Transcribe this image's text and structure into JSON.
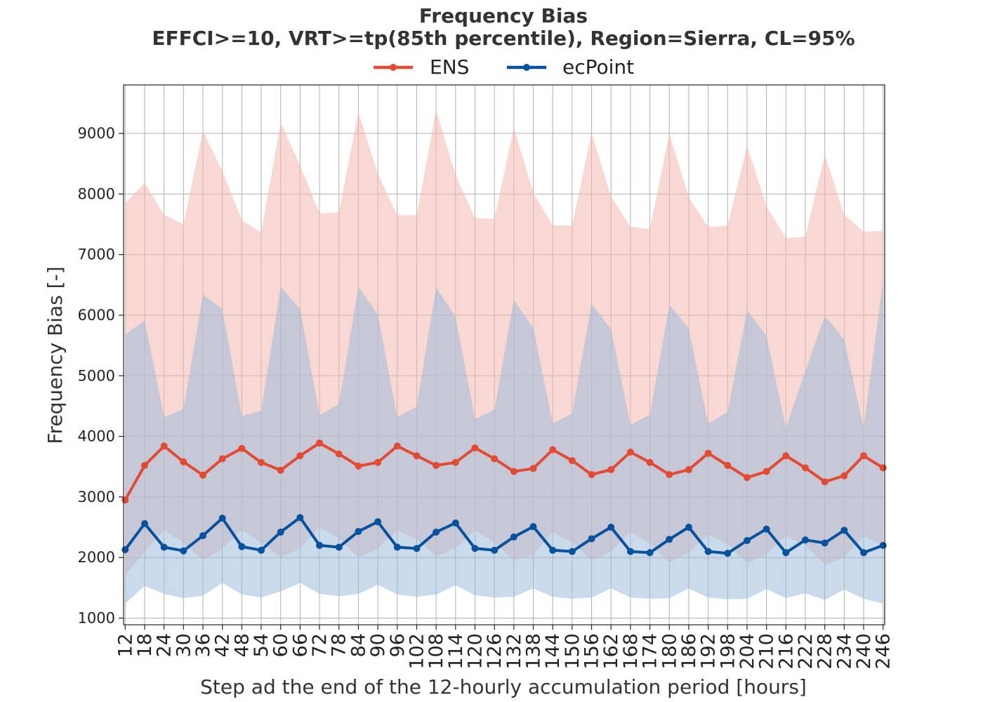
{
  "chart_data": {
    "type": "line",
    "title": "Frequency Bias",
    "subtitle": "EFFCI>=10, VRT>=tp(85th percentile), Region=Sierra, CL=95%",
    "xlabel": "Step ad the end of the 12-hourly accumulation period [hours]",
    "ylabel": "Frequency Bias [-]",
    "x": [
      12,
      18,
      24,
      30,
      36,
      42,
      48,
      54,
      60,
      66,
      72,
      78,
      84,
      90,
      96,
      102,
      108,
      114,
      120,
      126,
      132,
      138,
      144,
      150,
      156,
      162,
      168,
      174,
      180,
      186,
      192,
      198,
      204,
      210,
      216,
      222,
      228,
      234,
      240,
      246
    ],
    "xlim": [
      11.5,
      246.5
    ],
    "ylim": [
      890,
      9800
    ],
    "yticks": [
      1000,
      2000,
      3000,
      4000,
      5000,
      6000,
      7000,
      8000,
      9000
    ],
    "grid": true,
    "legend_position": "top-center",
    "series": [
      {
        "name": "ENS",
        "color": "#e34a33",
        "band_color": "#f4b6ae",
        "values": [
          2950,
          3520,
          3840,
          3580,
          3360,
          3630,
          3800,
          3570,
          3440,
          3680,
          3890,
          3710,
          3510,
          3570,
          3840,
          3680,
          3520,
          3570,
          3810,
          3630,
          3420,
          3470,
          3780,
          3600,
          3370,
          3450,
          3740,
          3570,
          3370,
          3450,
          3720,
          3520,
          3320,
          3420,
          3680,
          3480,
          3250,
          3350,
          3680,
          3480
        ],
        "upper": [
          7850,
          8180,
          7660,
          7500,
          9040,
          8380,
          7570,
          7360,
          9180,
          8470,
          7680,
          7700,
          9350,
          8330,
          7650,
          7650,
          9390,
          8310,
          7600,
          7590,
          9100,
          8020,
          7480,
          7480,
          9010,
          7960,
          7460,
          7420,
          8990,
          7950,
          7450,
          7480,
          8800,
          7800,
          7270,
          7300,
          8650,
          7660,
          7380,
          7390
        ],
        "lower": [
          1700,
          2100,
          2450,
          2250,
          1950,
          2150,
          2450,
          2250,
          2000,
          2150,
          2500,
          2320,
          2000,
          2150,
          2450,
          2300,
          2020,
          2150,
          2450,
          2250,
          1950,
          2050,
          2420,
          2250,
          1950,
          2100,
          2420,
          2230,
          1920,
          2080,
          2380,
          2220,
          1900,
          2050,
          2350,
          2200,
          1880,
          2000,
          2350,
          2200
        ]
      },
      {
        "name": "ecPoint",
        "color": "#08519c",
        "band_color": "#9dbbdd",
        "values": [
          2130,
          2560,
          2170,
          2110,
          2360,
          2650,
          2180,
          2120,
          2420,
          2660,
          2200,
          2170,
          2430,
          2590,
          2170,
          2150,
          2420,
          2570,
          2150,
          2120,
          2340,
          2510,
          2120,
          2100,
          2310,
          2500,
          2100,
          2080,
          2300,
          2500,
          2100,
          2070,
          2280,
          2470,
          2080,
          2290,
          2240,
          2450,
          2080,
          2200
        ],
        "upper": [
          5680,
          5910,
          4320,
          4450,
          6340,
          6100,
          4340,
          4420,
          6470,
          6100,
          4350,
          4530,
          6470,
          6010,
          4320,
          4490,
          6460,
          5970,
          4290,
          4440,
          6250,
          5790,
          4210,
          4380,
          6190,
          5770,
          4190,
          4360,
          6170,
          5780,
          4210,
          4400,
          6080,
          5660,
          4140,
          5080,
          5990,
          5600,
          4140,
          6560
        ],
        "lower": [
          1240,
          1530,
          1400,
          1330,
          1370,
          1580,
          1390,
          1340,
          1440,
          1580,
          1400,
          1360,
          1400,
          1550,
          1390,
          1350,
          1390,
          1540,
          1380,
          1340,
          1350,
          1490,
          1350,
          1320,
          1340,
          1490,
          1340,
          1320,
          1330,
          1490,
          1340,
          1310,
          1320,
          1480,
          1330,
          1410,
          1300,
          1470,
          1320,
          1240
        ]
      }
    ]
  }
}
